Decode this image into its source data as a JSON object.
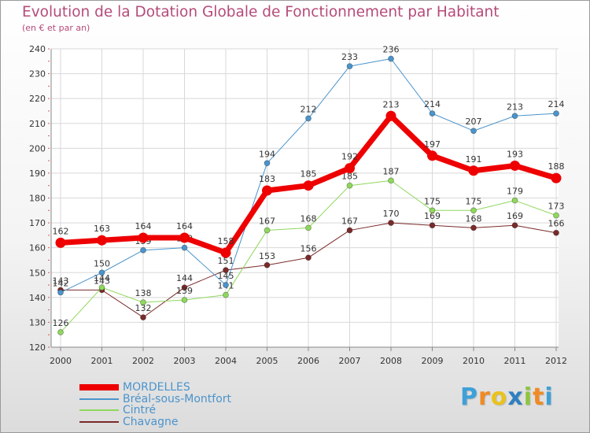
{
  "title": "Evolution de la Dotation Globale de Fonctionnement par Habitant",
  "subtitle": "(en € et par an)",
  "logo": {
    "text": [
      "P",
      "r",
      "o",
      "x",
      "i",
      "t",
      "i"
    ],
    "colors": [
      "#3fa0d8",
      "#f08a24",
      "#e9c21c",
      "#2f7fc1",
      "#8cc63f",
      "#f08a24",
      "#3fa0d8"
    ]
  },
  "chart_data": {
    "type": "line",
    "x": [
      "2000",
      "2001",
      "2002",
      "2003",
      "2004",
      "2005",
      "2006",
      "2007",
      "2008",
      "2009",
      "2010",
      "2011",
      "2012"
    ],
    "ylim": [
      120,
      240
    ],
    "yticks": [
      120,
      130,
      140,
      150,
      160,
      170,
      180,
      190,
      200,
      210,
      220,
      230,
      240
    ],
    "grid": true,
    "legend_position": "bottom-left",
    "series": [
      {
        "name": "Chavagne",
        "color": "#7a2a2a",
        "width": 1,
        "marker": 3.5,
        "values": [
          143,
          143,
          132,
          144,
          151,
          153,
          156,
          167,
          170,
          169,
          168,
          169,
          166
        ]
      },
      {
        "name": "Cintré",
        "color": "#8fd85c",
        "width": 1,
        "marker": 3.5,
        "values": [
          126,
          144,
          138,
          139,
          141,
          167,
          168,
          185,
          187,
          175,
          175,
          179,
          173
        ]
      },
      {
        "name": "Bréal-sous-Montfort",
        "color": "#4b94cc",
        "width": 1,
        "marker": 3.5,
        "values": [
          142,
          150,
          159,
          160,
          145,
          194,
          212,
          233,
          236,
          214,
          207,
          213,
          214
        ]
      },
      {
        "name": "MORDELLES",
        "color": "#ee0000",
        "width": 7,
        "marker": 6.5,
        "values": [
          162,
          163,
          164,
          164,
          158,
          183,
          185,
          192,
          213,
          197,
          191,
          193,
          188
        ]
      }
    ],
    "legend_order": [
      "MORDELLES",
      "Bréal-sous-Montfort",
      "Cintré",
      "Chavagne"
    ]
  }
}
